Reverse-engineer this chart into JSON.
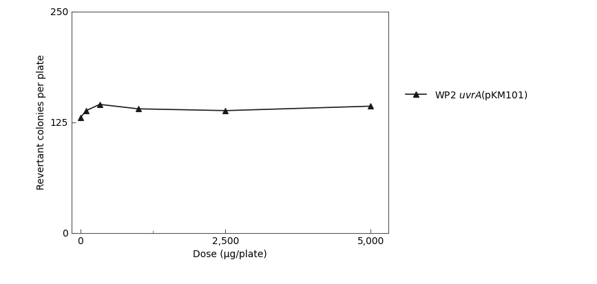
{
  "x": [
    0,
    100,
    333,
    1000,
    2500,
    5000
  ],
  "y": [
    130,
    138,
    145,
    140,
    138,
    143
  ],
  "line_color": "#1a1a1a",
  "marker": "^",
  "marker_size": 6,
  "marker_facecolor": "#1a1a1a",
  "xlabel": "Dose (μg/plate)",
  "ylabel": "Revertant colonies per plate",
  "xlim": [
    -150,
    5300
  ],
  "ylim": [
    0,
    250
  ],
  "yticks": [
    0,
    125,
    250
  ],
  "xticks": [
    0,
    2500,
    5000
  ],
  "xtick_labels": [
    "0",
    "2,500",
    "5,000"
  ],
  "legend_label": "WP2 $\\it{uvrA}$(pKM101)",
  "background_color": "#ffffff",
  "axis_fontsize": 10,
  "tick_fontsize": 10,
  "legend_fontsize": 10
}
